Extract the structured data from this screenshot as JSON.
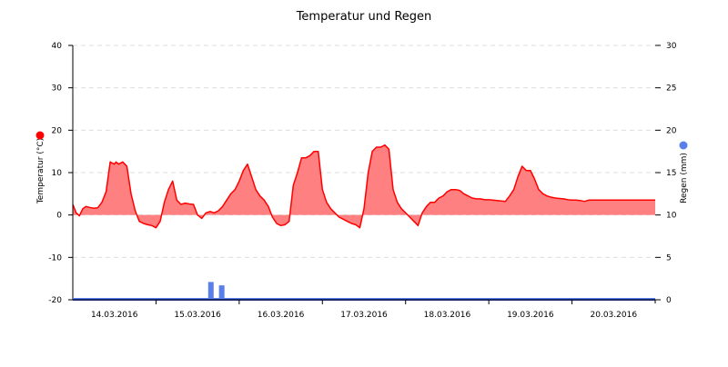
{
  "chart_data": {
    "type": "area+bar",
    "title": "Temperatur und Regen",
    "xlabel": "",
    "x_tick_labels": [
      "14.03.2016",
      "15.03.2016",
      "16.03.2016",
      "17.03.2016",
      "18.03.2016",
      "19.03.2016",
      "20.03.2016"
    ],
    "x_range_days": [
      0,
      7
    ],
    "grid": "horizontal dashed",
    "legend": "colored dots next to axis titles",
    "y_left": {
      "label": "Temperatur (°C)",
      "ylim": [
        -20,
        40
      ],
      "ticks": [
        40,
        30,
        20,
        10,
        0,
        -10,
        -20
      ],
      "marker_color": "#ff0000"
    },
    "y_right": {
      "label": "Regen (mm)",
      "ylim": [
        0,
        30
      ],
      "ticks": [
        30,
        25,
        20,
        15,
        10,
        5,
        0
      ],
      "marker_color": "#5b7fe8"
    },
    "series": [
      {
        "name": "Temperatur",
        "type": "area",
        "axis": "left",
        "line_color": "#ff0000",
        "fill_color": "#ff8080",
        "x_days": [
          0.0,
          0.04,
          0.08,
          0.12,
          0.16,
          0.2,
          0.25,
          0.3,
          0.35,
          0.4,
          0.45,
          0.5,
          0.52,
          0.55,
          0.6,
          0.65,
          0.7,
          0.75,
          0.8,
          0.85,
          0.9,
          0.95,
          1.0,
          1.05,
          1.1,
          1.15,
          1.2,
          1.25,
          1.3,
          1.35,
          1.4,
          1.45,
          1.5,
          1.55,
          1.6,
          1.65,
          1.7,
          1.75,
          1.8,
          1.85,
          1.9,
          1.95,
          2.0,
          2.05,
          2.1,
          2.15,
          2.2,
          2.25,
          2.3,
          2.35,
          2.4,
          2.45,
          2.5,
          2.55,
          2.6,
          2.65,
          2.7,
          2.75,
          2.8,
          2.85,
          2.9,
          2.95,
          3.0,
          3.05,
          3.1,
          3.15,
          3.2,
          3.25,
          3.3,
          3.35,
          3.4,
          3.45,
          3.5,
          3.55,
          3.6,
          3.65,
          3.7,
          3.75,
          3.8,
          3.85,
          3.9,
          3.95,
          4.0,
          4.05,
          4.1,
          4.15,
          4.2,
          4.25,
          4.3,
          4.35,
          4.4,
          4.45,
          4.5,
          4.55,
          4.6,
          4.65,
          4.7,
          4.75,
          4.8,
          4.85,
          4.9,
          4.95,
          5.0,
          5.05,
          5.1,
          5.15,
          5.2,
          5.25,
          5.3,
          5.35,
          5.4,
          5.45,
          5.5,
          5.55,
          5.6,
          5.65,
          5.7,
          5.75,
          5.8,
          5.85,
          5.9,
          5.95,
          6.0,
          6.05,
          6.1,
          6.15,
          6.2,
          6.25,
          6.3,
          6.35,
          6.4,
          6.45,
          6.5,
          6.55,
          6.6,
          6.65,
          6.7,
          6.75,
          6.8,
          6.85,
          6.9,
          6.95,
          7.0
        ],
        "values": [
          2.5,
          0.5,
          -0.2,
          1.5,
          2.0,
          1.8,
          1.6,
          1.7,
          3.0,
          5.5,
          12.5,
          12.0,
          12.5,
          12.0,
          12.5,
          11.5,
          5.0,
          1.0,
          -1.5,
          -2.0,
          -2.3,
          -2.5,
          -3.0,
          -1.5,
          3.0,
          6.0,
          8.0,
          3.5,
          2.5,
          2.8,
          2.6,
          2.5,
          0.0,
          -0.8,
          0.5,
          0.8,
          0.5,
          1.0,
          2.0,
          3.5,
          5.0,
          6.0,
          8.0,
          10.5,
          12.0,
          9.0,
          6.0,
          4.5,
          3.5,
          2.0,
          -0.5,
          -2.0,
          -2.5,
          -2.3,
          -1.5,
          7.0,
          10.0,
          13.5,
          13.5,
          14.0,
          15.0,
          15.0,
          6.0,
          3.0,
          1.5,
          0.5,
          -0.5,
          -1.0,
          -1.5,
          -2.0,
          -2.3,
          -3.0,
          1.5,
          10.0,
          15.0,
          16.0,
          16.0,
          16.5,
          15.5,
          6.0,
          3.0,
          1.5,
          0.5,
          -0.5,
          -1.5,
          -2.5,
          0.5,
          2.0,
          3.0,
          3.0,
          4.0,
          4.5,
          5.5,
          6.0,
          6.0,
          5.8,
          5.0,
          4.5,
          4.0,
          3.8,
          3.8,
          3.6,
          3.6,
          3.5,
          3.4,
          3.3,
          3.2,
          4.5,
          6.0,
          9.0,
          11.5,
          10.5,
          10.5,
          8.5,
          6.0,
          5.0,
          4.5,
          4.2,
          4.0,
          3.9,
          3.8,
          3.6,
          3.5,
          3.5,
          3.4,
          3.2,
          3.5,
          3.5,
          3.5,
          3.5,
          3.5,
          3.5,
          3.5,
          3.5,
          3.5,
          3.5,
          3.5,
          3.5,
          3.5,
          3.5,
          3.5,
          3.5,
          3.5,
          3.5
        ]
      },
      {
        "name": "Regen",
        "type": "bar",
        "axis": "right",
        "color": "#5b7fe8",
        "x_days": [
          1.66,
          1.79
        ],
        "values": [
          2.1,
          1.7
        ]
      }
    ]
  }
}
